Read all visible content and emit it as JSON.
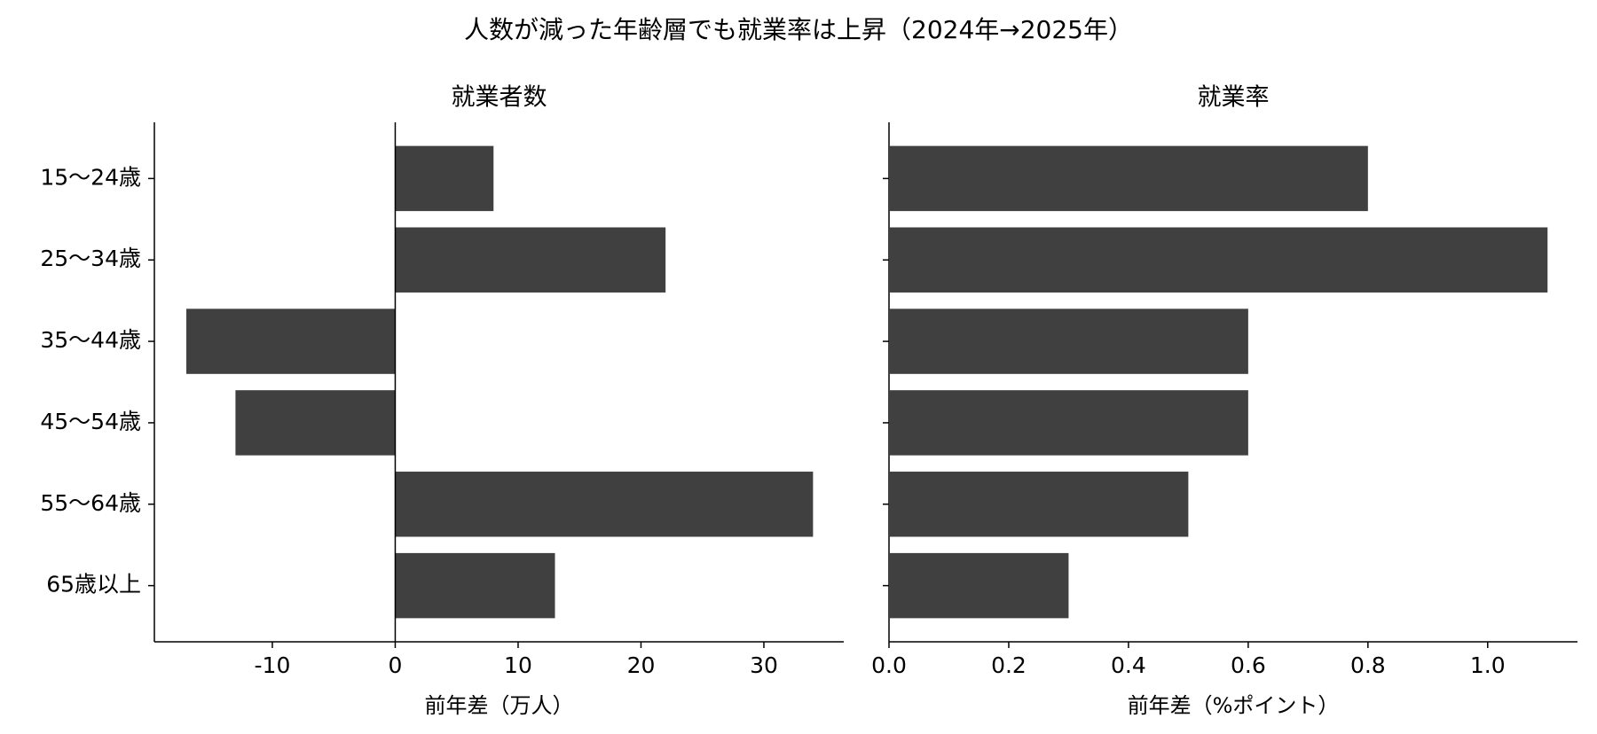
{
  "title": "人数が減った年齢層でも就業率は上昇（2024年→2025年）",
  "chart_data": [
    {
      "type": "barh",
      "title": "就業者数",
      "x_label": "前年差（万人）",
      "categories": [
        "15〜24歳",
        "25〜34歳",
        "35〜44歳",
        "45〜54歳",
        "55〜64歳",
        "65歳以上"
      ],
      "values": [
        8,
        22,
        -17,
        -13,
        34,
        13
      ],
      "color": "#404040",
      "xlim": [
        -19.6,
        36.5
      ],
      "xticks": [
        {
          "value": -10,
          "label": "-10"
        },
        0,
        10,
        20,
        30
      ],
      "reference_line": 0
    },
    {
      "type": "barh",
      "title": "就業率",
      "x_label": "前年差（%ポイント）",
      "values": [
        0.8,
        1.1,
        0.6,
        0.6,
        0.5,
        0.3
      ],
      "color": "#404040",
      "xlim": [
        0,
        1.15
      ],
      "xticks": [
        {
          "value": 0,
          "label": "0.0"
        },
        0.2,
        0.4,
        0.6,
        0.8,
        {
          "value": 1,
          "label": "1.0"
        }
      ]
    }
  ]
}
